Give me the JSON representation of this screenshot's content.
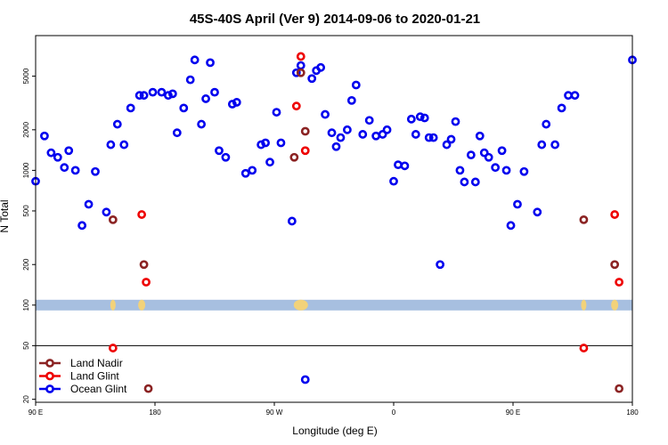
{
  "chart_data": {
    "type": "scatter",
    "title": "45S-40S April (Ver 9)   2014-09-06 to 2020-01-21",
    "xlabel": "Longitude (deg E)",
    "ylabel": "N Total",
    "y_scale": "log",
    "xlim": [
      -90,
      180
    ],
    "ylim": [
      19,
      10000
    ],
    "x_ticks": [
      {
        "value": -90,
        "label": "90 E"
      },
      {
        "value": -36,
        "label": "180"
      },
      {
        "value": 18,
        "label": "90 W"
      },
      {
        "value": 72,
        "label": "0"
      },
      {
        "value": 126,
        "label": "90 E"
      },
      {
        "value": 180,
        "label": "180"
      }
    ],
    "y_ticks": [
      {
        "value": 20,
        "label": "20"
      },
      {
        "value": 50,
        "label": "50"
      },
      {
        "value": 100,
        "label": "100"
      },
      {
        "value": 200,
        "label": "200"
      },
      {
        "value": 500,
        "label": "500"
      },
      {
        "value": 1000,
        "label": "1000"
      },
      {
        "value": 2000,
        "label": "2000"
      },
      {
        "value": 5000,
        "label": "5000"
      }
    ],
    "reference_line": 50,
    "band": {
      "value": 100,
      "color": "#a7bfe0",
      "highlight_color": "#f2d27a"
    },
    "series": [
      {
        "name": "Land Nadir",
        "color": "#8b2323",
        "points": [
          {
            "x": -55,
            "y": 430
          },
          {
            "x": -41,
            "y": 200
          },
          {
            "x": -39,
            "y": 24
          },
          {
            "x": 27,
            "y": 1250
          },
          {
            "x": 30,
            "y": 5300
          },
          {
            "x": 32,
            "y": 1950
          },
          {
            "x": 158,
            "y": 430
          },
          {
            "x": 172,
            "y": 200
          },
          {
            "x": 174,
            "y": 24
          }
        ]
      },
      {
        "name": "Land Glint",
        "color": "#ee0000",
        "points": [
          {
            "x": -55,
            "y": 48
          },
          {
            "x": -42,
            "y": 470
          },
          {
            "x": -40,
            "y": 148
          },
          {
            "x": 28,
            "y": 3000
          },
          {
            "x": 30,
            "y": 7000
          },
          {
            "x": 32,
            "y": 1400
          },
          {
            "x": 158,
            "y": 48
          },
          {
            "x": 172,
            "y": 470
          },
          {
            "x": 174,
            "y": 148
          }
        ]
      },
      {
        "name": "Ocean Glint",
        "color": "#0000ee",
        "points": [
          {
            "x": -90,
            "y": 830
          },
          {
            "x": -86,
            "y": 1800
          },
          {
            "x": -83,
            "y": 1350
          },
          {
            "x": -80,
            "y": 1250
          },
          {
            "x": -77,
            "y": 1050
          },
          {
            "x": -75,
            "y": 1400
          },
          {
            "x": -72,
            "y": 1000
          },
          {
            "x": -69,
            "y": 390
          },
          {
            "x": -66,
            "y": 560
          },
          {
            "x": -63,
            "y": 980
          },
          {
            "x": -58,
            "y": 490
          },
          {
            "x": -56,
            "y": 1550
          },
          {
            "x": -53,
            "y": 2200
          },
          {
            "x": -50,
            "y": 1550
          },
          {
            "x": -47,
            "y": 2900
          },
          {
            "x": -43,
            "y": 3600
          },
          {
            "x": -41,
            "y": 3600
          },
          {
            "x": -37,
            "y": 3800
          },
          {
            "x": -33,
            "y": 3800
          },
          {
            "x": -30,
            "y": 3600
          },
          {
            "x": -28,
            "y": 3700
          },
          {
            "x": -26,
            "y": 1900
          },
          {
            "x": -23,
            "y": 2900
          },
          {
            "x": -20,
            "y": 4700
          },
          {
            "x": -18,
            "y": 6600
          },
          {
            "x": -15,
            "y": 2200
          },
          {
            "x": -13,
            "y": 3400
          },
          {
            "x": -11,
            "y": 6300
          },
          {
            "x": -9,
            "y": 3800
          },
          {
            "x": -7,
            "y": 1400
          },
          {
            "x": -4,
            "y": 1250
          },
          {
            "x": -1,
            "y": 3100
          },
          {
            "x": 1,
            "y": 3200
          },
          {
            "x": 5,
            "y": 950
          },
          {
            "x": 8,
            "y": 1000
          },
          {
            "x": 12,
            "y": 1550
          },
          {
            "x": 14,
            "y": 1600
          },
          {
            "x": 16,
            "y": 1150
          },
          {
            "x": 19,
            "y": 2700
          },
          {
            "x": 21,
            "y": 1600
          },
          {
            "x": 26,
            "y": 420
          },
          {
            "x": 28,
            "y": 5300
          },
          {
            "x": 30,
            "y": 6000
          },
          {
            "x": 32,
            "y": 28
          },
          {
            "x": 35,
            "y": 4800
          },
          {
            "x": 37,
            "y": 5500
          },
          {
            "x": 39,
            "y": 5800
          },
          {
            "x": 41,
            "y": 2600
          },
          {
            "x": 44,
            "y": 1900
          },
          {
            "x": 46,
            "y": 1500
          },
          {
            "x": 48,
            "y": 1750
          },
          {
            "x": 51,
            "y": 2000
          },
          {
            "x": 53,
            "y": 3300
          },
          {
            "x": 55,
            "y": 4300
          },
          {
            "x": 58,
            "y": 1850
          },
          {
            "x": 61,
            "y": 2350
          },
          {
            "x": 64,
            "y": 1800
          },
          {
            "x": 67,
            "y": 1850
          },
          {
            "x": 69,
            "y": 2000
          },
          {
            "x": 72,
            "y": 830
          },
          {
            "x": 74,
            "y": 1100
          },
          {
            "x": 77,
            "y": 1080
          },
          {
            "x": 80,
            "y": 2400
          },
          {
            "x": 82,
            "y": 1850
          },
          {
            "x": 84,
            "y": 2500
          },
          {
            "x": 86,
            "y": 2450
          },
          {
            "x": 88,
            "y": 1750
          },
          {
            "x": 90,
            "y": 1750
          },
          {
            "x": 93,
            "y": 200
          },
          {
            "x": 96,
            "y": 1550
          },
          {
            "x": 98,
            "y": 1700
          },
          {
            "x": 100,
            "y": 2300
          },
          {
            "x": 102,
            "y": 1000
          },
          {
            "x": 104,
            "y": 820
          },
          {
            "x": 107,
            "y": 1300
          },
          {
            "x": 109,
            "y": 820
          },
          {
            "x": 111,
            "y": 1800
          },
          {
            "x": 113,
            "y": 1350
          },
          {
            "x": 115,
            "y": 1250
          },
          {
            "x": 118,
            "y": 1050
          },
          {
            "x": 121,
            "y": 1400
          },
          {
            "x": 123,
            "y": 1000
          },
          {
            "x": 125,
            "y": 390
          },
          {
            "x": 128,
            "y": 560
          },
          {
            "x": 131,
            "y": 980
          },
          {
            "x": 137,
            "y": 490
          },
          {
            "x": 139,
            "y": 1550
          },
          {
            "x": 141,
            "y": 2200
          },
          {
            "x": 145,
            "y": 1550
          },
          {
            "x": 148,
            "y": 2900
          },
          {
            "x": 151,
            "y": 3600
          },
          {
            "x": 154,
            "y": 3600
          },
          {
            "x": 180,
            "y": 6600
          }
        ]
      }
    ],
    "legend": {
      "position": "bottom-left"
    }
  }
}
